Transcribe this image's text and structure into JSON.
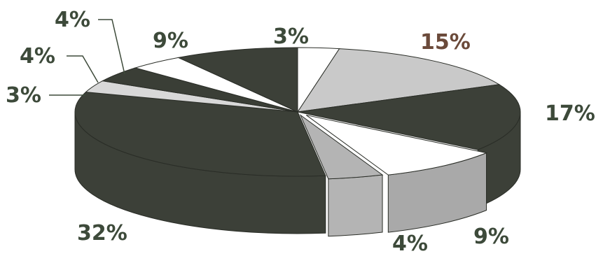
{
  "chart_data": {
    "type": "pie",
    "title": "",
    "style": "3d-exploded",
    "slices": [
      {
        "label": "3%",
        "value": 3,
        "color": "#ffffff"
      },
      {
        "label": "15%",
        "value": 15,
        "color": "#c9c9c9"
      },
      {
        "label": "17%",
        "value": 17,
        "color": "#3c4038"
      },
      {
        "label": "9%",
        "value": 9,
        "color": "#ffffff"
      },
      {
        "label": "4%",
        "value": 4,
        "color": "#b4b4b4"
      },
      {
        "label": "32%",
        "value": 32,
        "color": "#3c4038"
      },
      {
        "label": "3%",
        "value": 3,
        "color": "#d8d8d8"
      },
      {
        "label": "4%",
        "value": 4,
        "color": "#3a3e36"
      },
      {
        "label": "4%",
        "value": 4,
        "color": "#ffffff"
      },
      {
        "label": "9%",
        "value": 9,
        "color": "#3c4038"
      }
    ],
    "label_colors": {
      "default": "#3d4a3a",
      "highlight": "#6b4a3a"
    }
  }
}
